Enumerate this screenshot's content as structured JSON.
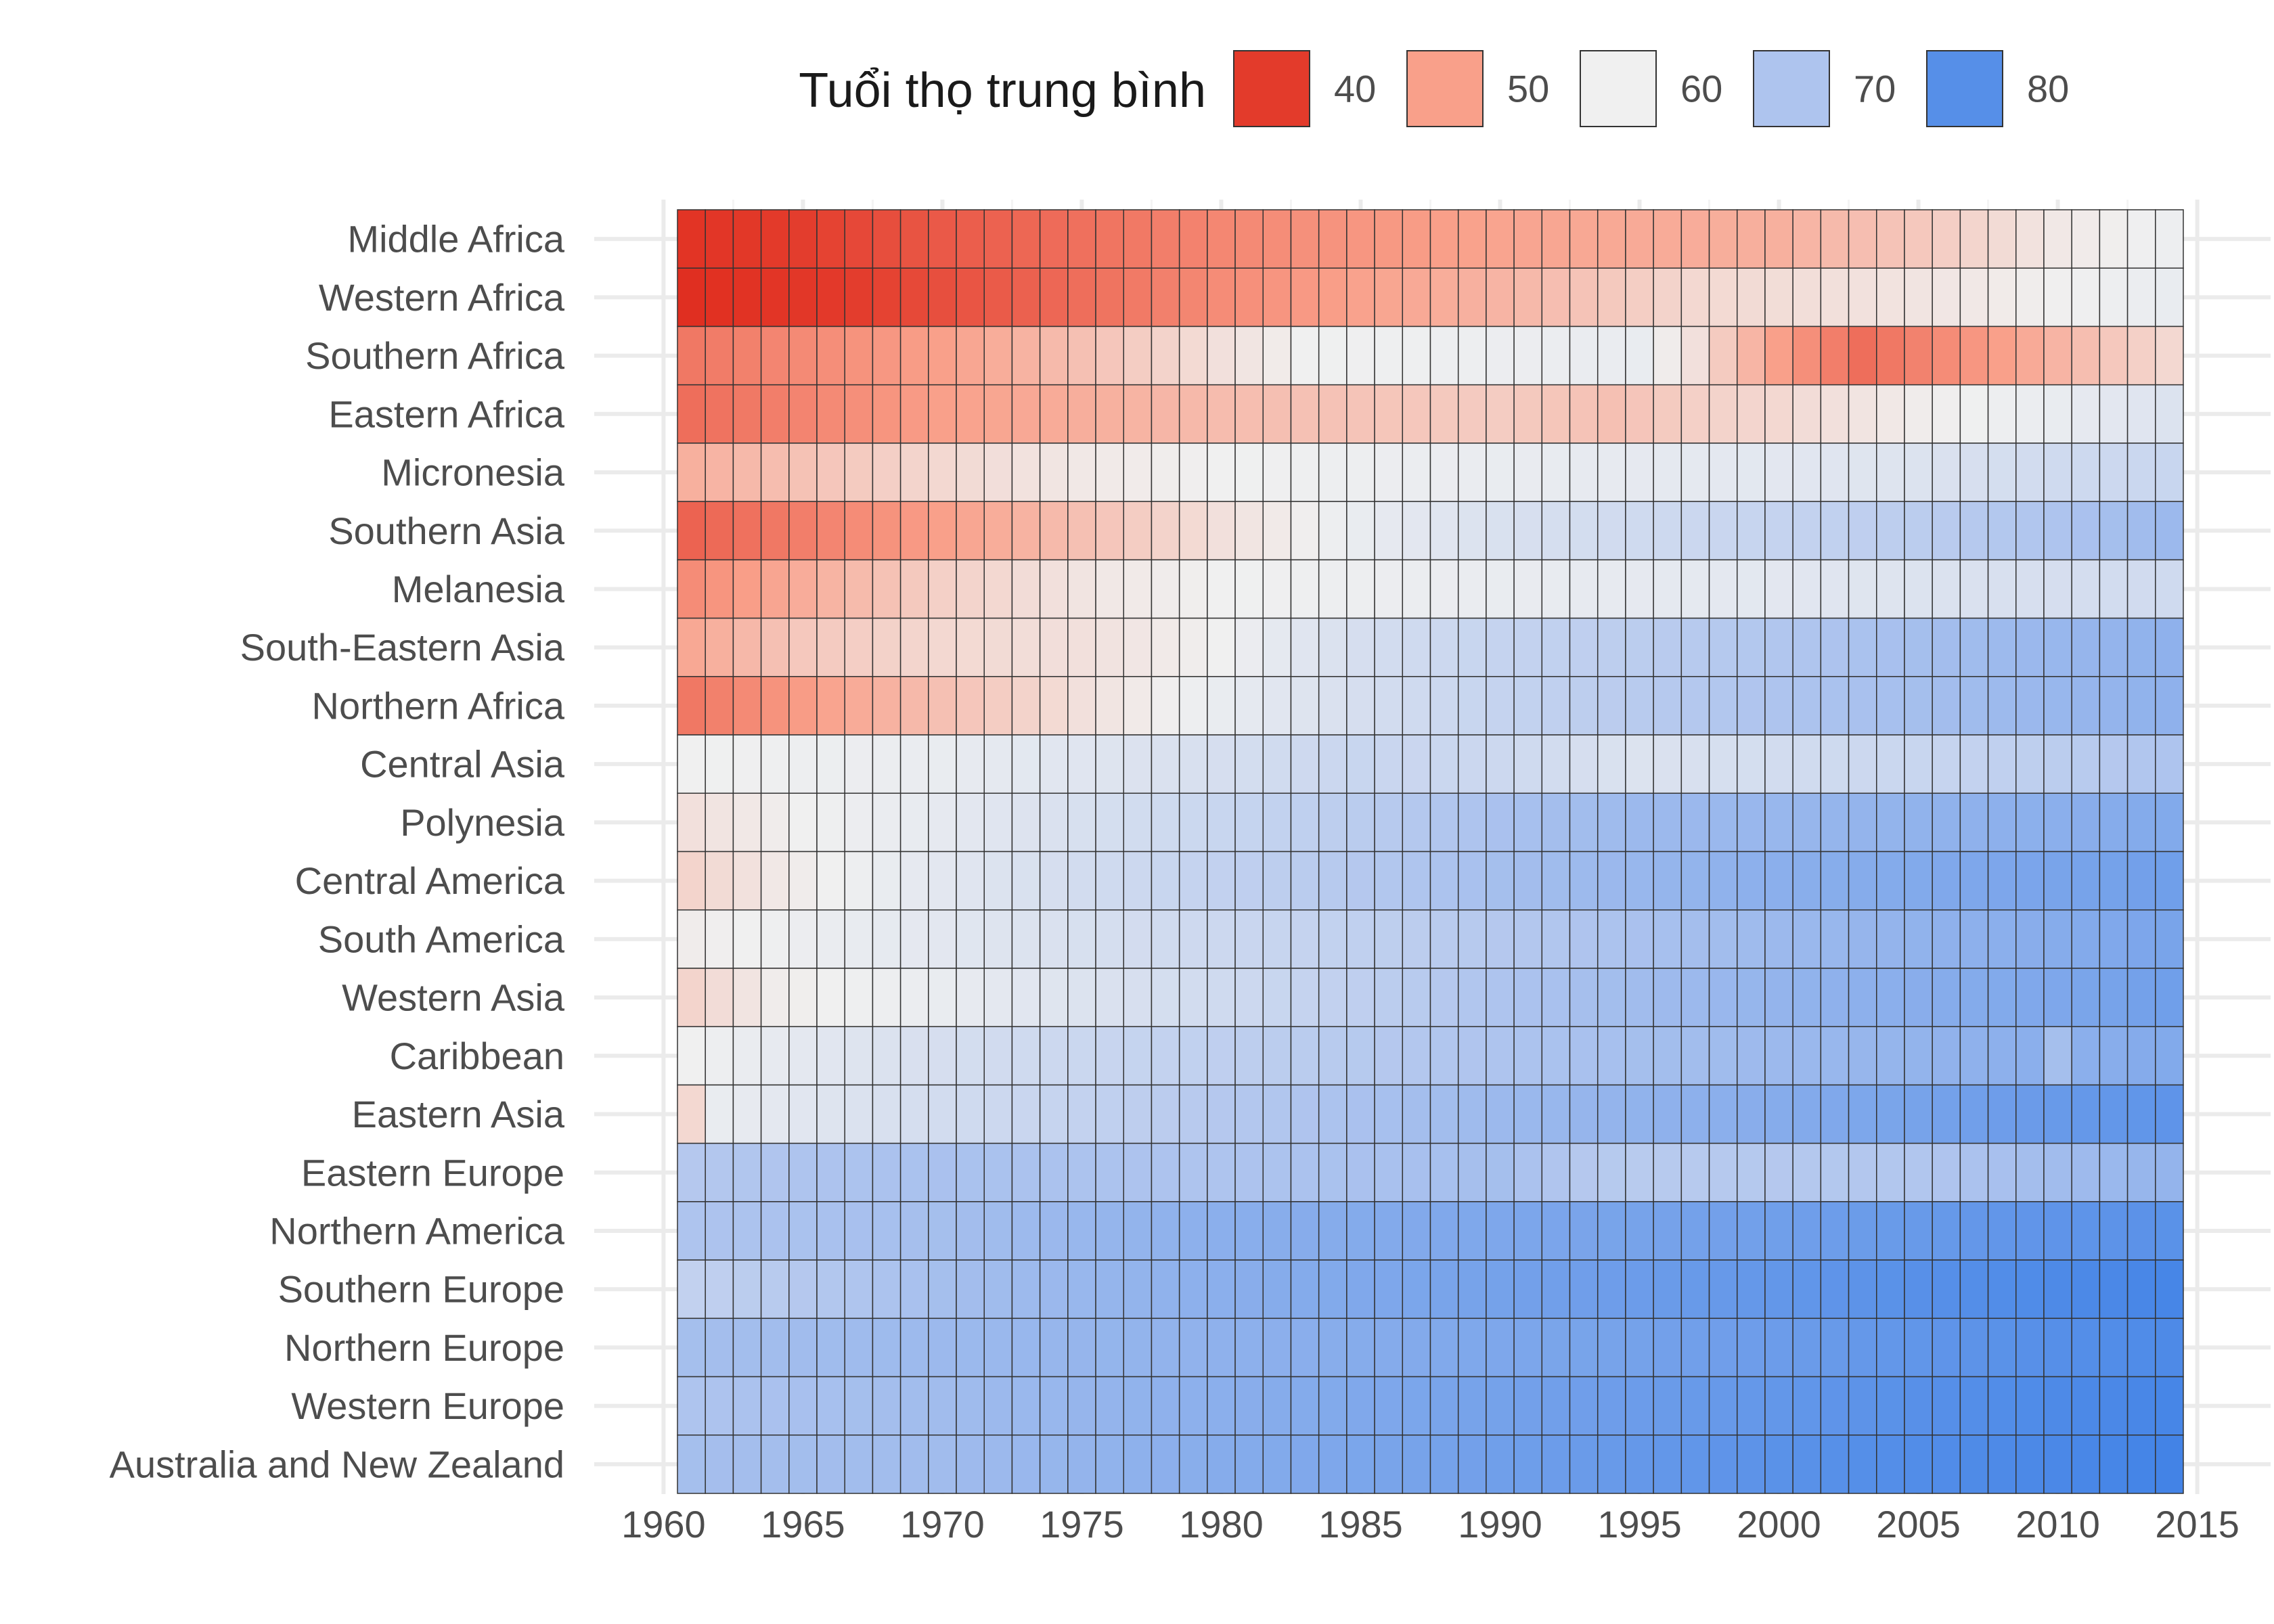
{
  "chart_data": {
    "type": "heatmap",
    "legend": {
      "title": "Tuổi thọ trung bình",
      "placement": "top",
      "breaks": [
        40,
        50,
        60,
        70,
        80
      ],
      "labels": [
        "40",
        "50",
        "60",
        "70",
        "80"
      ],
      "colors": [
        "#e33b2b",
        "#f9a08a",
        "#f0f0f0",
        "#aec4ee",
        "#568fe8"
      ],
      "gradient": [
        {
          "value": 36,
          "color": "#e02d1f"
        },
        {
          "value": 40,
          "color": "#e33b2b"
        },
        {
          "value": 50,
          "color": "#f9a08a"
        },
        {
          "value": 60,
          "color": "#f0f0f0"
        },
        {
          "value": 70,
          "color": "#aec4ee"
        },
        {
          "value": 80,
          "color": "#568fe8"
        },
        {
          "value": 83,
          "color": "#3f81e6"
        }
      ]
    },
    "x_axis": {
      "ticks": [
        1960,
        1965,
        1970,
        1975,
        1980,
        1985,
        1990,
        1995,
        2000,
        2005,
        2010,
        2015
      ],
      "tick_labels": [
        "1960",
        "1965",
        "1970",
        "1975",
        "1980",
        "1985",
        "1990",
        "1995",
        "2000",
        "2005",
        "2010",
        "2015"
      ],
      "range": [
        1957.5,
        2017.5
      ]
    },
    "years": {
      "start": 1961,
      "end": 2014
    },
    "grid": true,
    "rows": [
      {
        "region": "Middle Africa",
        "knots": [
          [
            1961,
            38
          ],
          [
            1970,
            43
          ],
          [
            1980,
            47.5
          ],
          [
            1990,
            50.5
          ],
          [
            2000,
            52
          ],
          [
            2005,
            55
          ],
          [
            2010,
            59
          ],
          [
            2014,
            60.5
          ]
        ]
      },
      {
        "region": "Western Africa",
        "knots": [
          [
            1961,
            36.5
          ],
          [
            1970,
            42
          ],
          [
            1980,
            48
          ],
          [
            1990,
            52.5
          ],
          [
            1997,
            57
          ],
          [
            2005,
            58.5
          ],
          [
            2014,
            61
          ]
        ]
      },
      {
        "region": "Southern Africa",
        "knots": [
          [
            1961,
            46
          ],
          [
            1970,
            50
          ],
          [
            1975,
            54
          ],
          [
            1980,
            58
          ],
          [
            1983,
            60
          ],
          [
            1995,
            61
          ],
          [
            1997,
            58
          ],
          [
            2000,
            50
          ],
          [
            2003,
            45
          ],
          [
            2005,
            47
          ],
          [
            2008,
            50
          ],
          [
            2012,
            55
          ],
          [
            2014,
            57
          ]
        ]
      },
      {
        "region": "Eastern Africa",
        "knots": [
          [
            1961,
            45
          ],
          [
            1970,
            50
          ],
          [
            1980,
            53.5
          ],
          [
            1990,
            55.5
          ],
          [
            1994,
            54
          ],
          [
            1997,
            56
          ],
          [
            2000,
            57
          ],
          [
            2005,
            59.5
          ],
          [
            2010,
            61
          ],
          [
            2014,
            63
          ]
        ]
      },
      {
        "region": "Micronesia",
        "knots": [
          [
            1961,
            52
          ],
          [
            1970,
            57
          ],
          [
            1975,
            59
          ],
          [
            1980,
            60
          ],
          [
            1990,
            61
          ],
          [
            2000,
            62
          ],
          [
            2005,
            63
          ],
          [
            2010,
            65
          ],
          [
            2014,
            66
          ]
        ]
      },
      {
        "region": "Southern Asia",
        "knots": [
          [
            1961,
            44
          ],
          [
            1970,
            50
          ],
          [
            1980,
            58
          ],
          [
            1985,
            61
          ],
          [
            1990,
            63.5
          ],
          [
            1995,
            65
          ],
          [
            2000,
            66.5
          ],
          [
            2005,
            68
          ],
          [
            2010,
            70
          ],
          [
            2014,
            72
          ]
        ]
      },
      {
        "region": "Melanesia",
        "knots": [
          [
            1961,
            48
          ],
          [
            1970,
            56
          ],
          [
            1976,
            59
          ],
          [
            1980,
            60
          ],
          [
            1990,
            61
          ],
          [
            2000,
            62
          ],
          [
            2010,
            64
          ],
          [
            2014,
            65
          ]
        ]
      },
      {
        "region": "South-Eastern Asia",
        "knots": [
          [
            1961,
            51
          ],
          [
            1965,
            55
          ],
          [
            1970,
            57
          ],
          [
            1975,
            58
          ],
          [
            1980,
            60
          ],
          [
            1985,
            64
          ],
          [
            1990,
            66.5
          ],
          [
            1995,
            68
          ],
          [
            2000,
            69.5
          ],
          [
            2005,
            71
          ],
          [
            2010,
            72.5
          ],
          [
            2014,
            73.5
          ]
        ]
      },
      {
        "region": "Northern Africa",
        "knots": [
          [
            1961,
            46
          ],
          [
            1970,
            54
          ],
          [
            1975,
            58
          ],
          [
            1980,
            61
          ],
          [
            1985,
            64
          ],
          [
            1990,
            66.5
          ],
          [
            1995,
            68.5
          ],
          [
            2000,
            70
          ],
          [
            2005,
            71
          ],
          [
            2010,
            72.5
          ],
          [
            2014,
            73.5
          ]
        ]
      },
      {
        "region": "Central Asia",
        "knots": [
          [
            1961,
            60
          ],
          [
            1970,
            61
          ],
          [
            1980,
            64
          ],
          [
            1985,
            66
          ],
          [
            1990,
            65.5
          ],
          [
            1995,
            63
          ],
          [
            2000,
            64.5
          ],
          [
            2005,
            66
          ],
          [
            2010,
            68
          ],
          [
            2014,
            70
          ]
        ]
      },
      {
        "region": "Polynesia",
        "knots": [
          [
            1961,
            58
          ],
          [
            1965,
            60
          ],
          [
            1970,
            61.5
          ],
          [
            1980,
            66
          ],
          [
            1990,
            70.5
          ],
          [
            1995,
            72
          ],
          [
            2000,
            72.5
          ],
          [
            2010,
            74
          ],
          [
            2014,
            75
          ]
        ]
      },
      {
        "region": "Central America",
        "knots": [
          [
            1961,
            56.5
          ],
          [
            1964,
            59
          ],
          [
            1970,
            62
          ],
          [
            1980,
            67
          ],
          [
            1990,
            71
          ],
          [
            2000,
            74
          ],
          [
            2010,
            76
          ],
          [
            2014,
            77
          ]
        ]
      },
      {
        "region": "South America",
        "knots": [
          [
            1961,
            59.5
          ],
          [
            1970,
            62
          ],
          [
            1980,
            65.5
          ],
          [
            1990,
            69
          ],
          [
            2000,
            72
          ],
          [
            2010,
            74.5
          ],
          [
            2014,
            76
          ]
        ]
      },
      {
        "region": "Western Asia",
        "knots": [
          [
            1961,
            56.5
          ],
          [
            1964,
            59.5
          ],
          [
            1970,
            61
          ],
          [
            1980,
            65
          ],
          [
            1990,
            70
          ],
          [
            2000,
            73
          ],
          [
            2010,
            75.5
          ],
          [
            2014,
            77
          ]
        ]
      },
      {
        "region": "Caribbean",
        "knots": [
          [
            1961,
            60
          ],
          [
            1970,
            64
          ],
          [
            1980,
            67.5
          ],
          [
            1990,
            70
          ],
          [
            2000,
            72
          ],
          [
            2009,
            74
          ],
          [
            2010,
            71
          ],
          [
            2011,
            74
          ],
          [
            2014,
            75
          ]
        ]
      },
      {
        "region": "Eastern Asia",
        "knots": [
          [
            1961,
            57
          ],
          [
            1962,
            61
          ],
          [
            1970,
            64.5
          ],
          [
            1980,
            69
          ],
          [
            1990,
            72
          ],
          [
            2000,
            74.5
          ],
          [
            2010,
            78
          ],
          [
            2014,
            79
          ]
        ]
      },
      {
        "region": "Eastern Europe",
        "knots": [
          [
            1961,
            69
          ],
          [
            1965,
            70
          ],
          [
            1970,
            70.5
          ],
          [
            1980,
            70
          ],
          [
            1990,
            71
          ],
          [
            1993,
            69
          ],
          [
            1995,
            68.5
          ],
          [
            2000,
            69
          ],
          [
            2005,
            69.5
          ],
          [
            2010,
            71.5
          ],
          [
            2014,
            73
          ]
        ]
      },
      {
        "region": "Northern America",
        "knots": [
          [
            1961,
            70
          ],
          [
            1970,
            71
          ],
          [
            1980,
            74
          ],
          [
            1990,
            75.5
          ],
          [
            2000,
            77
          ],
          [
            2010,
            79
          ],
          [
            2014,
            79.5
          ]
        ]
      },
      {
        "region": "Southern Europe",
        "knots": [
          [
            1961,
            67
          ],
          [
            1965,
            69
          ],
          [
            1970,
            71
          ],
          [
            1980,
            74
          ],
          [
            1990,
            76.5
          ],
          [
            2000,
            78.5
          ],
          [
            2010,
            81
          ],
          [
            2014,
            82
          ]
        ]
      },
      {
        "region": "Northern Europe",
        "knots": [
          [
            1961,
            71
          ],
          [
            1970,
            72
          ],
          [
            1980,
            73.5
          ],
          [
            1990,
            75.5
          ],
          [
            2000,
            77.5
          ],
          [
            2010,
            80
          ],
          [
            2014,
            81
          ]
        ]
      },
      {
        "region": "Western Europe",
        "knots": [
          [
            1961,
            70
          ],
          [
            1970,
            71.5
          ],
          [
            1980,
            74
          ],
          [
            1990,
            76.5
          ],
          [
            2000,
            78.5
          ],
          [
            2010,
            81
          ],
          [
            2014,
            82
          ]
        ]
      },
      {
        "region": "Australia and New Zealand",
        "knots": [
          [
            1961,
            71
          ],
          [
            1970,
            71.5
          ],
          [
            1980,
            74.5
          ],
          [
            1990,
            77
          ],
          [
            2000,
            79.5
          ],
          [
            2010,
            81.5
          ],
          [
            2014,
            82.5
          ]
        ]
      }
    ]
  }
}
